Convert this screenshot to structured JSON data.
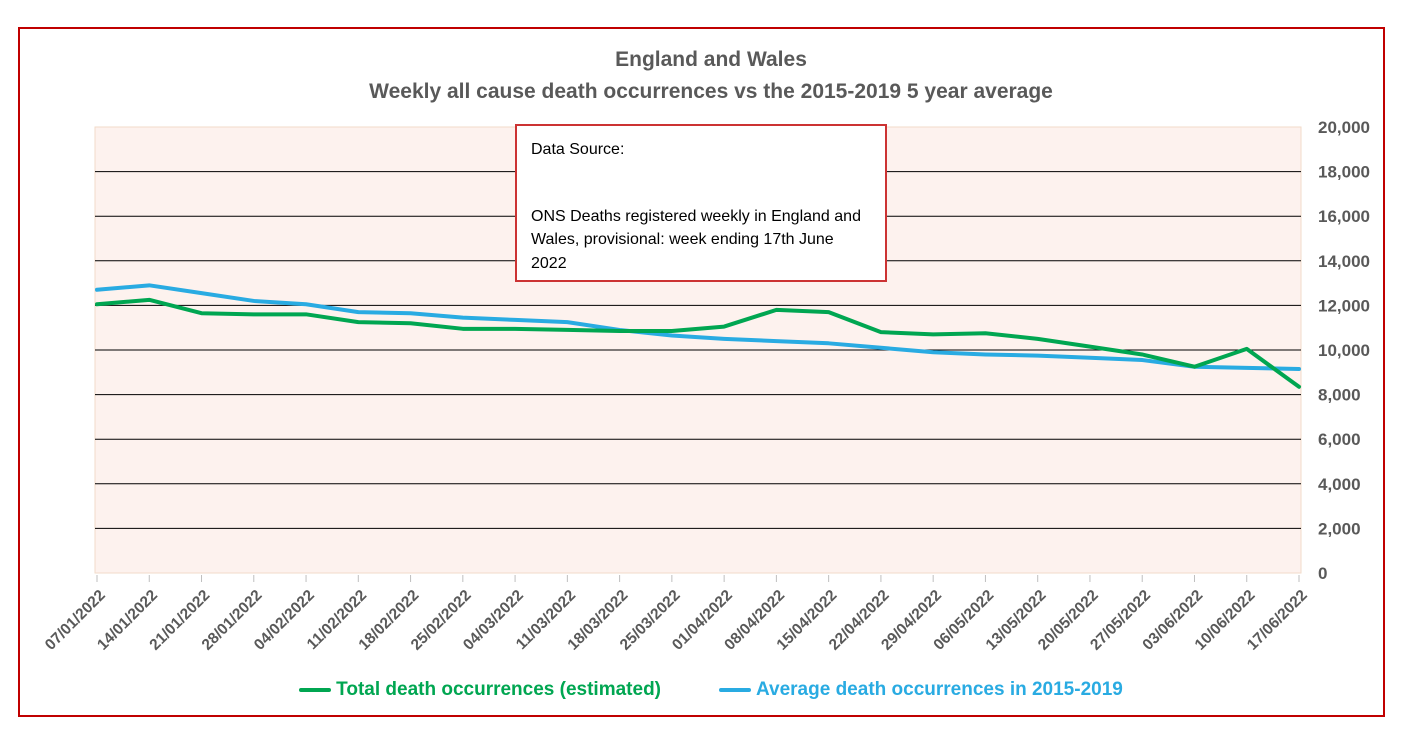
{
  "frame": {
    "border_color": "#C00000"
  },
  "header": {
    "title": "England and Wales",
    "subtitle": "Weekly all cause death occurrences vs the 2015-2019 5 year average"
  },
  "data_source_box": {
    "heading": "Data Source:",
    "body": "ONS Deaths registered weekly in England and Wales, provisional: week ending 17th June 2022",
    "border_color": "#CC3333"
  },
  "legend": {
    "position": "bottom",
    "items": [
      {
        "label": "Total death occurrences (estimated)",
        "color": "#00A651"
      },
      {
        "label": "Average death occurrences in 2015-2019",
        "color": "#29ABE2"
      }
    ]
  },
  "chart_data": {
    "type": "line",
    "title": "England and Wales",
    "subtitle": "Weekly all cause death occurrences vs the 2015-2019 5 year average",
    "categories": [
      "07/01/2022",
      "14/01/2022",
      "21/01/2022",
      "28/01/2022",
      "04/02/2022",
      "11/02/2022",
      "18/02/2022",
      "25/02/2022",
      "04/03/2022",
      "11/03/2022",
      "18/03/2022",
      "25/03/2022",
      "01/04/2022",
      "08/04/2022",
      "15/04/2022",
      "22/04/2022",
      "29/04/2022",
      "06/05/2022",
      "13/05/2022",
      "20/05/2022",
      "27/05/2022",
      "03/06/2022",
      "10/06/2022",
      "17/06/2022"
    ],
    "series": [
      {
        "name": "Total death occurrences (estimated)",
        "color": "#00A651",
        "values": [
          12050,
          12250,
          11650,
          11600,
          11600,
          11250,
          11200,
          10950,
          10950,
          10900,
          10850,
          10850,
          11050,
          11800,
          11700,
          10800,
          10700,
          10750,
          10500,
          10150,
          9800,
          9250,
          10050,
          8350
        ]
      },
      {
        "name": "Average death occurrences in 2015-2019",
        "color": "#29ABE2",
        "values": [
          12700,
          12900,
          12550,
          12200,
          12050,
          11700,
          11650,
          11450,
          11350,
          11250,
          10900,
          10650,
          10500,
          10400,
          10300,
          10100,
          9900,
          9800,
          9750,
          9650,
          9550,
          9250,
          9200,
          9150
        ]
      }
    ],
    "ylim": [
      0,
      20000
    ],
    "ytick_step": 2000,
    "ytick_labels": [
      "0",
      "2,000",
      "4,000",
      "6,000",
      "8,000",
      "10,000",
      "12,000",
      "14,000",
      "16,000",
      "18,000",
      "20,000"
    ],
    "yaxis_side": "right",
    "xlabel_rotation": -45,
    "grid": "horizontal",
    "colors": {
      "plot_bg": "#FDF2EE",
      "plot_border": "#F2DBC9",
      "grid": "#000000",
      "tick": "#BFBFBF",
      "axis_text": "#595959"
    }
  }
}
